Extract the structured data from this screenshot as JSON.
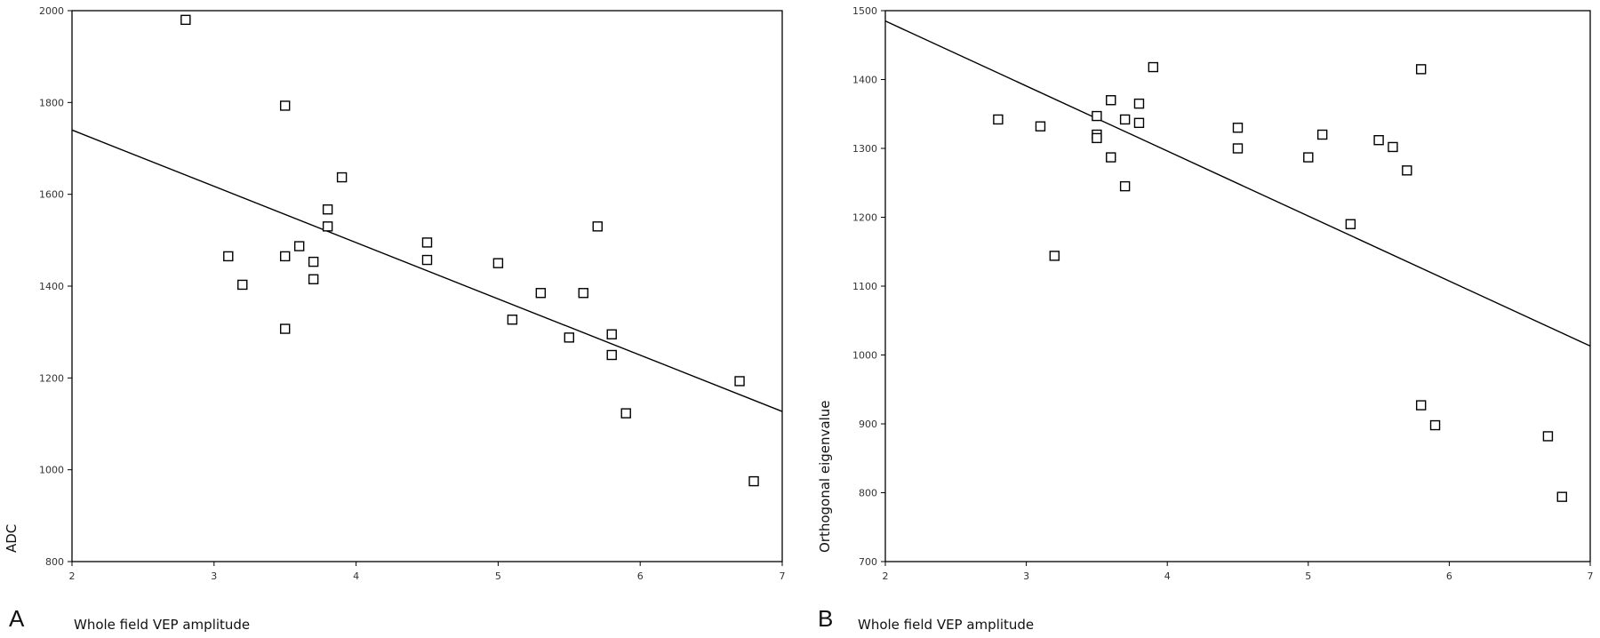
{
  "chart_data": [
    {
      "type": "scatter",
      "panel_label": "A",
      "xlabel": "Whole field VEP amplitude",
      "ylabel": "ADC",
      "xlim": [
        2,
        7
      ],
      "ylim": [
        800,
        2000
      ],
      "xticks": [
        2,
        3,
        4,
        5,
        6,
        7
      ],
      "yticks": [
        800,
        1000,
        1200,
        1400,
        1600,
        1800,
        2000
      ],
      "grid": false,
      "legend": "none",
      "fit_line": {
        "x": [
          2,
          7
        ],
        "y": [
          1740,
          1127
        ]
      },
      "points": [
        {
          "x": 2.8,
          "y": 1980
        },
        {
          "x": 3.5,
          "y": 1793
        },
        {
          "x": 3.9,
          "y": 1637
        },
        {
          "x": 3.8,
          "y": 1567
        },
        {
          "x": 3.8,
          "y": 1530
        },
        {
          "x": 3.1,
          "y": 1465
        },
        {
          "x": 3.5,
          "y": 1465
        },
        {
          "x": 3.6,
          "y": 1487
        },
        {
          "x": 3.7,
          "y": 1453
        },
        {
          "x": 3.2,
          "y": 1403
        },
        {
          "x": 3.7,
          "y": 1415
        },
        {
          "x": 3.5,
          "y": 1307
        },
        {
          "x": 4.5,
          "y": 1495
        },
        {
          "x": 4.5,
          "y": 1457
        },
        {
          "x": 5.0,
          "y": 1450
        },
        {
          "x": 5.3,
          "y": 1385
        },
        {
          "x": 5.6,
          "y": 1385
        },
        {
          "x": 5.7,
          "y": 1530
        },
        {
          "x": 5.1,
          "y": 1327
        },
        {
          "x": 5.5,
          "y": 1288
        },
        {
          "x": 5.8,
          "y": 1295
        },
        {
          "x": 5.8,
          "y": 1250
        },
        {
          "x": 5.9,
          "y": 1123
        },
        {
          "x": 6.7,
          "y": 1193
        },
        {
          "x": 6.8,
          "y": 975
        }
      ]
    },
    {
      "type": "scatter",
      "panel_label": "B",
      "xlabel": "Whole field VEP amplitude",
      "ylabel": "Orthogonal eigenvalue",
      "xlim": [
        2,
        7
      ],
      "ylim": [
        700,
        1500
      ],
      "xticks": [
        2,
        3,
        4,
        5,
        6,
        7
      ],
      "yticks": [
        700,
        800,
        900,
        1000,
        1100,
        1200,
        1300,
        1400,
        1500
      ],
      "grid": false,
      "legend": "none",
      "fit_line": {
        "x": [
          2,
          7
        ],
        "y": [
          1485,
          1013
        ]
      },
      "points": [
        {
          "x": 2.8,
          "y": 1342
        },
        {
          "x": 3.1,
          "y": 1332
        },
        {
          "x": 3.2,
          "y": 1144
        },
        {
          "x": 3.5,
          "y": 1347
        },
        {
          "x": 3.5,
          "y": 1320
        },
        {
          "x": 3.5,
          "y": 1315
        },
        {
          "x": 3.6,
          "y": 1370
        },
        {
          "x": 3.6,
          "y": 1287
        },
        {
          "x": 3.7,
          "y": 1342
        },
        {
          "x": 3.7,
          "y": 1245
        },
        {
          "x": 3.8,
          "y": 1365
        },
        {
          "x": 3.8,
          "y": 1337
        },
        {
          "x": 3.9,
          "y": 1418
        },
        {
          "x": 4.5,
          "y": 1330
        },
        {
          "x": 4.5,
          "y": 1300
        },
        {
          "x": 5.0,
          "y": 1287
        },
        {
          "x": 5.1,
          "y": 1320
        },
        {
          "x": 5.3,
          "y": 1190
        },
        {
          "x": 5.5,
          "y": 1312
        },
        {
          "x": 5.6,
          "y": 1302
        },
        {
          "x": 5.7,
          "y": 1268
        },
        {
          "x": 5.8,
          "y": 1415
        },
        {
          "x": 5.8,
          "y": 927
        },
        {
          "x": 5.9,
          "y": 898
        },
        {
          "x": 6.7,
          "y": 882
        },
        {
          "x": 6.8,
          "y": 794
        }
      ]
    }
  ],
  "style": {
    "frame_color": "#000000",
    "marker_color": "#000000",
    "line_color": "#000000",
    "background": "#ffffff"
  }
}
